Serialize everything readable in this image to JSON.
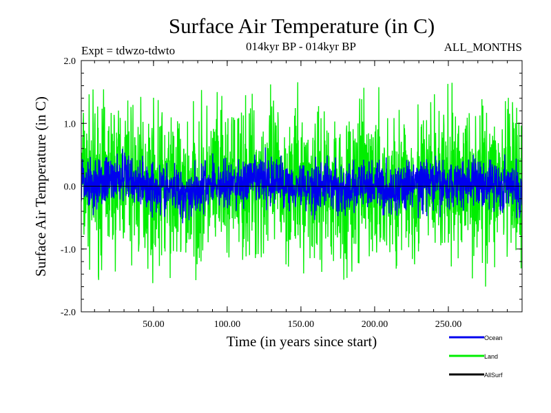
{
  "chart_data": {
    "type": "line",
    "title": "Surface Air Temperature (in C)",
    "subtitle_left": "Expt = tdwzo-tdwto",
    "subtitle_center": "014kyr BP - 014kyr BP",
    "subtitle_right": "ALL_MONTHS",
    "xlabel": "Time (in years since start)",
    "ylabel": "Surface Air Temperature (in C)",
    "xlim": [
      1,
      300
    ],
    "ylim": [
      -2.0,
      2.0
    ],
    "x_ticks": [
      50,
      100,
      150,
      200,
      250
    ],
    "x_tick_labels": [
      "50.00",
      "100.00",
      "150.00",
      "200.00",
      "250.00"
    ],
    "y_ticks": [
      -2.0,
      -1.0,
      0.0,
      1.0,
      2.0
    ],
    "y_tick_labels": [
      "-2.0",
      "-1.0",
      "0.0",
      "1.0",
      "2.0"
    ],
    "grid": false,
    "zero_line": true,
    "legend_position": "bottom-right",
    "series": [
      {
        "name": "Ocean",
        "color": "#0000ee",
        "noise_amplitude": 0.2,
        "x": [
          1,
          10,
          20,
          30,
          40,
          50,
          60,
          70,
          80,
          90,
          100,
          110,
          120,
          130,
          140,
          150,
          160,
          170,
          180,
          190,
          200,
          210,
          220,
          230,
          240,
          250,
          260,
          270,
          280,
          290,
          300
        ],
        "values": [
          0.1,
          0.05,
          0.1,
          0.15,
          0.05,
          0.0,
          -0.05,
          -0.1,
          -0.05,
          0.05,
          0.0,
          0.05,
          0.1,
          0.1,
          0.05,
          0.0,
          0.0,
          0.05,
          -0.1,
          0.0,
          0.05,
          -0.1,
          0.0,
          0.05,
          0.05,
          0.0,
          0.1,
          0.05,
          0.05,
          0.0,
          -0.1
        ]
      },
      {
        "name": "Land",
        "color": "#00ee00",
        "noise_amplitude": 0.6,
        "x": [
          1,
          10,
          20,
          30,
          40,
          50,
          60,
          70,
          80,
          90,
          100,
          110,
          120,
          130,
          140,
          150,
          160,
          170,
          180,
          190,
          200,
          210,
          220,
          230,
          240,
          250,
          260,
          270,
          280,
          290,
          300
        ],
        "values": [
          0.1,
          0.05,
          0.1,
          0.15,
          0.05,
          0.0,
          -0.05,
          -0.1,
          -0.05,
          0.05,
          0.0,
          0.05,
          0.1,
          0.1,
          0.05,
          0.0,
          0.0,
          0.05,
          -0.1,
          0.0,
          0.05,
          -0.1,
          0.0,
          0.05,
          0.05,
          0.0,
          0.1,
          0.05,
          0.05,
          0.0,
          -0.1
        ]
      },
      {
        "name": "AllSurf",
        "color": "#000000"
      }
    ]
  }
}
